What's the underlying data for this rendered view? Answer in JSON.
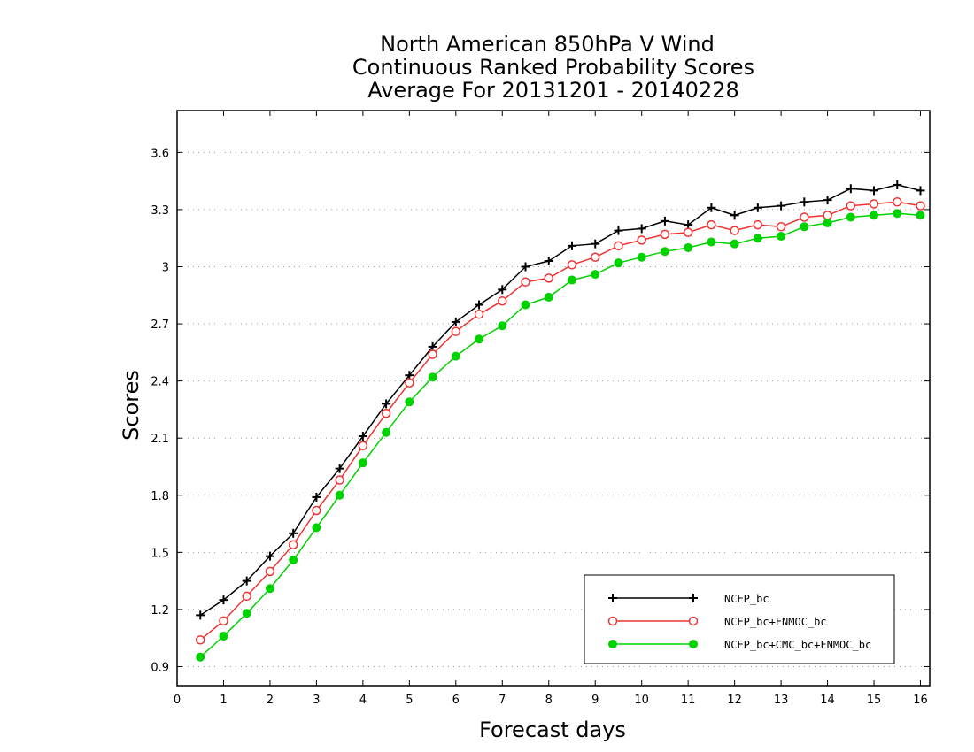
{
  "chart_data": {
    "type": "line",
    "title": [
      "North American 850hPa V Wind",
      "Continuous Ranked Probability Scores",
      "Average For 20131201 - 20140228"
    ],
    "xlabel": "Forecast days",
    "ylabel": "Scores",
    "xlim": [
      0,
      16.2
    ],
    "ylim": [
      0.8,
      3.82
    ],
    "x_ticks": [
      0,
      1,
      2,
      3,
      4,
      5,
      6,
      7,
      8,
      9,
      10,
      11,
      12,
      13,
      14,
      15,
      16
    ],
    "y_ticks": [
      0.9,
      1.2,
      1.5,
      1.8,
      2.1,
      2.4,
      2.7,
      3,
      3.3,
      3.6
    ],
    "y_tick_labels": [
      "0.9",
      "1.2",
      "1.5",
      "1.8",
      "2.1",
      "2.4",
      "2.7",
      "3",
      "3.3",
      "3.6"
    ],
    "grid": "horizontal dotted",
    "legend_position": "bottom-right",
    "x": [
      0.5,
      1,
      1.5,
      2,
      2.5,
      3,
      3.5,
      4,
      4.5,
      5,
      5.5,
      6,
      6.5,
      7,
      7.5,
      8,
      8.5,
      9,
      9.5,
      10,
      10.5,
      11,
      11.5,
      12,
      12.5,
      13,
      13.5,
      14,
      14.5,
      15,
      15.5,
      16
    ],
    "series": [
      {
        "name": "NCEP_bc",
        "color": "#000000",
        "marker": "plus",
        "values": [
          1.17,
          1.25,
          1.35,
          1.48,
          1.6,
          1.79,
          1.94,
          2.11,
          2.28,
          2.43,
          2.58,
          2.71,
          2.8,
          2.88,
          3.0,
          3.03,
          3.11,
          3.12,
          3.19,
          3.2,
          3.24,
          3.22,
          3.31,
          3.27,
          3.31,
          3.32,
          3.34,
          3.35,
          3.41,
          3.4,
          3.43,
          3.4
        ]
      },
      {
        "name": "NCEP_bc+FNMOC_bc",
        "color": "#ee3333",
        "marker": "open-circle",
        "values": [
          1.04,
          1.14,
          1.27,
          1.4,
          1.54,
          1.72,
          1.88,
          2.06,
          2.23,
          2.39,
          2.54,
          2.66,
          2.75,
          2.82,
          2.92,
          2.94,
          3.01,
          3.05,
          3.11,
          3.14,
          3.17,
          3.18,
          3.22,
          3.19,
          3.22,
          3.21,
          3.26,
          3.27,
          3.32,
          3.33,
          3.34,
          3.32
        ]
      },
      {
        "name": "NCEP_bc+CMC_bc+FNMOC_bc",
        "color": "#00d200",
        "marker": "filled-circle",
        "values": [
          0.95,
          1.06,
          1.18,
          1.31,
          1.46,
          1.63,
          1.8,
          1.97,
          2.13,
          2.29,
          2.42,
          2.53,
          2.62,
          2.69,
          2.8,
          2.84,
          2.93,
          2.96,
          3.02,
          3.05,
          3.08,
          3.1,
          3.13,
          3.12,
          3.15,
          3.16,
          3.21,
          3.23,
          3.26,
          3.27,
          3.28,
          3.27
        ]
      }
    ]
  }
}
